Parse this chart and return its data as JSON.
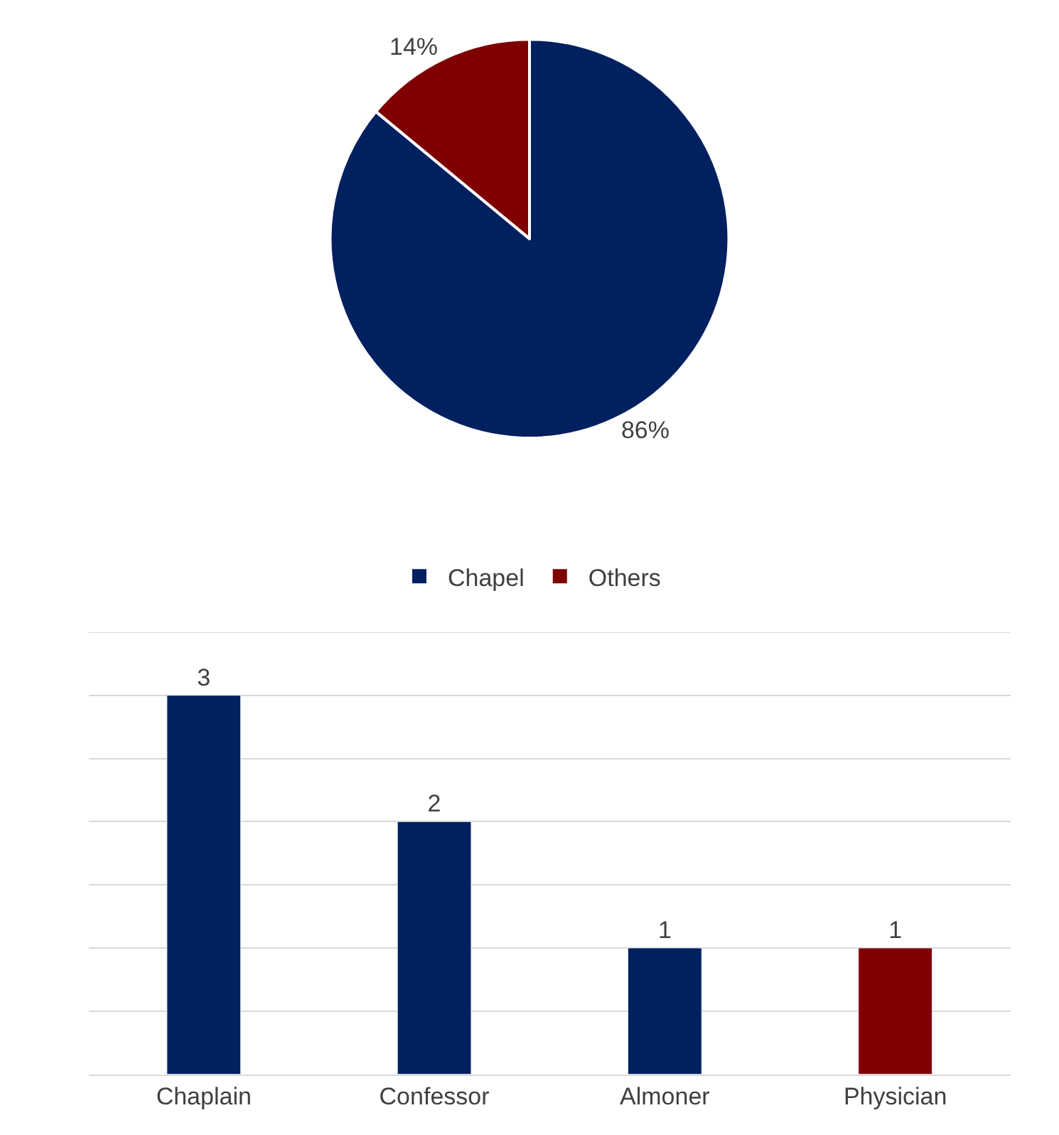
{
  "chart_data": [
    {
      "type": "pie",
      "categories": [
        "Chapel",
        "Others"
      ],
      "values": [
        86,
        14
      ],
      "colors": [
        "#002060",
        "#7f0000"
      ],
      "value_labels": [
        "86%",
        "14%"
      ],
      "legend": "bottom"
    },
    {
      "type": "bar",
      "categories": [
        "Chaplain",
        "Confessor",
        "Almoner",
        "Physician"
      ],
      "values": [
        3,
        2,
        1,
        1
      ],
      "colors": [
        "#002060",
        "#002060",
        "#002060",
        "#7f0000"
      ],
      "data_labels": true,
      "ylim": [
        0,
        3.5
      ],
      "yticks": [
        {
          "value": 0,
          "label": null
        },
        {
          "value": 0.5,
          "label": null
        },
        {
          "value": 1,
          "label": null
        },
        {
          "value": 1.5,
          "label": null
        },
        {
          "value": 2,
          "label": null
        },
        {
          "value": 2.5,
          "label": null
        },
        {
          "value": 3,
          "label": null
        },
        {
          "value": 3.5,
          "label": null
        }
      ],
      "grid": "y",
      "tick_labels": "x",
      "legend": false
    }
  ]
}
